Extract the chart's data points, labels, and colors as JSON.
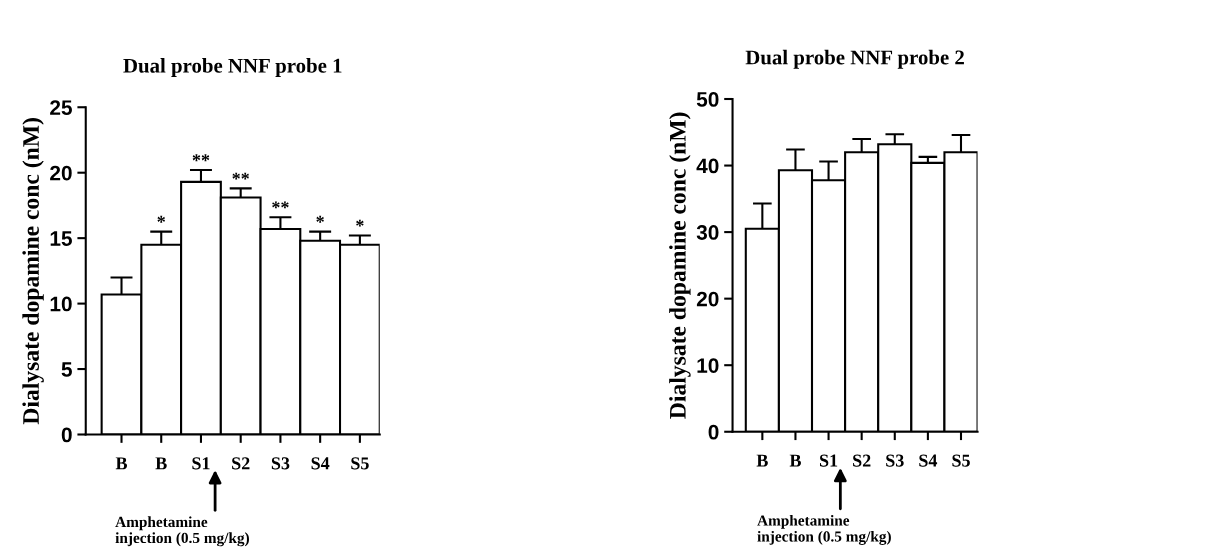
{
  "chart_data": [
    {
      "type": "bar",
      "title": "Dual probe NNF probe 1",
      "ylabel": "Dialysate dopamine conc (nM)",
      "categories": [
        "B",
        "B",
        "S1",
        "S2",
        "S3",
        "S4",
        "S5"
      ],
      "values": [
        10.7,
        14.5,
        19.3,
        18.1,
        15.7,
        14.8,
        14.5
      ],
      "errors": [
        [
          10.7,
          12.0
        ],
        [
          14.5,
          15.5
        ],
        [
          19.3,
          20.2
        ],
        [
          18.1,
          18.8
        ],
        [
          15.7,
          16.6
        ],
        [
          14.8,
          15.5
        ],
        [
          14.5,
          15.2
        ]
      ],
      "value_labels": [
        null,
        "*",
        "**",
        "**",
        "**",
        "*",
        "*"
      ],
      "color": "#ffffff",
      "ylim": [
        0,
        25
      ],
      "yticks": [
        0,
        5,
        10,
        15,
        20,
        25
      ],
      "grid": false,
      "legend": false,
      "annotations": [
        "Amphetamine\ninjection (0.5 mg/kg)"
      ]
    },
    {
      "type": "bar",
      "title": "Dual probe NNF probe 2",
      "ylabel": "Dialysate dopamine conc (nM)",
      "categories": [
        "B",
        "B",
        "S1",
        "S2",
        "S3",
        "S4",
        "S5"
      ],
      "values": [
        30.5,
        39.3,
        37.8,
        42.0,
        43.2,
        40.4,
        42.0
      ],
      "errors": [
        [
          30.5,
          34.3
        ],
        [
          39.3,
          42.4
        ],
        [
          37.8,
          40.6
        ],
        [
          42.0,
          44.0
        ],
        [
          43.2,
          44.7
        ],
        [
          40.4,
          41.3
        ],
        [
          42.0,
          44.6
        ]
      ],
      "color": "#ffffff",
      "ylim": [
        0,
        50
      ],
      "yticks": [
        0,
        10,
        20,
        30,
        40,
        50
      ],
      "grid": false,
      "legend": false,
      "annotations": [
        "Amphetamine\ninjection (0.5 mg/kg)"
      ]
    }
  ]
}
